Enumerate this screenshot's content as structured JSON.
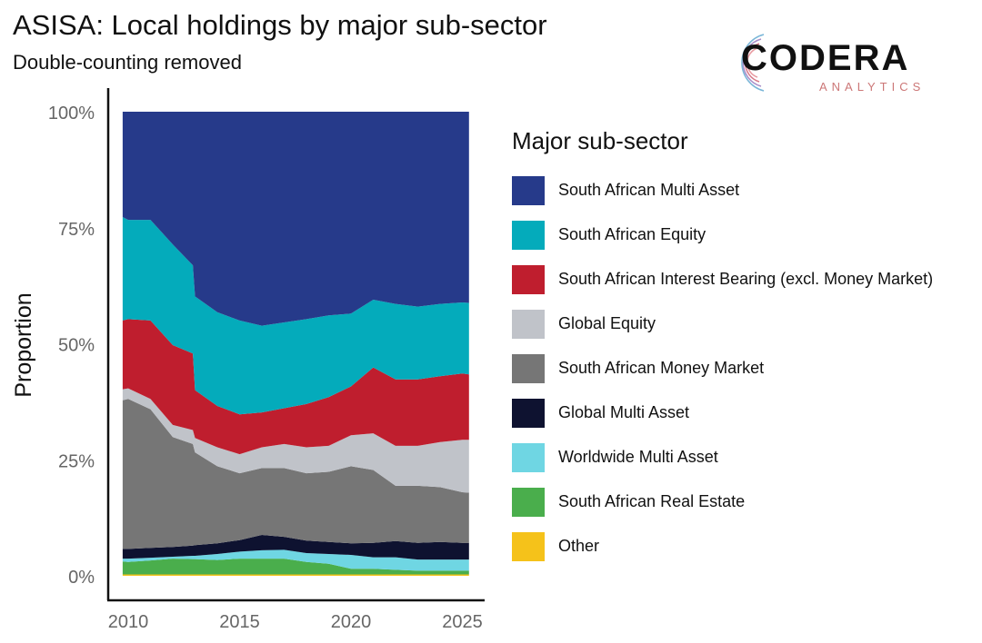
{
  "title": "ASISA: Local holdings by major sub-sector",
  "subtitle": "Double-counting removed",
  "logo": {
    "text": "CODERA",
    "subtext": "ANALYTICS"
  },
  "chart_data": {
    "type": "area",
    "stacked": true,
    "normalized": true,
    "title": "ASISA: Local holdings by major sub-sector",
    "subtitle": "Double-counting removed",
    "xlabel": "",
    "ylabel": "Proportion",
    "xlim": [
      2009.75,
      2025.3
    ],
    "ylim": [
      0,
      100
    ],
    "xticks": [
      2010,
      2015,
      2020,
      2025
    ],
    "xtick_labels": [
      "2010",
      "2015",
      "2020",
      "2025"
    ],
    "yticks": [
      0,
      25,
      50,
      75,
      100
    ],
    "ytick_labels": [
      "0%",
      "25%",
      "50%",
      "75%",
      "100%"
    ],
    "grid": false,
    "legend_title": "Major sub-sector",
    "legend_placement": "right",
    "x": [
      2009.75,
      2010,
      2011,
      2012,
      2012.9,
      2013,
      2014,
      2015,
      2016,
      2017,
      2018,
      2019,
      2020,
      2021,
      2022,
      2023,
      2024,
      2025,
      2025.3
    ],
    "series": [
      {
        "name": "South African Multi Asset",
        "color": "#263a8a",
        "values": [
          22.7,
          23.3,
          23.3,
          28.6,
          33.1,
          39.8,
          43.2,
          45.0,
          46.1,
          45.4,
          44.7,
          43.9,
          43.5,
          40.5,
          41.4,
          42.0,
          41.4,
          41.1,
          41.2
        ]
      },
      {
        "name": "South African Equity",
        "color": "#04abbb",
        "values": [
          22.3,
          21.4,
          21.7,
          21.7,
          19.0,
          20.2,
          20.2,
          20.2,
          18.7,
          18.5,
          18.3,
          17.6,
          15.7,
          14.6,
          16.3,
          15.7,
          15.6,
          15.3,
          15.4
        ]
      },
      {
        "name": "South African Interest Bearing (excl. Money Market)",
        "color": "#bf1e2e",
        "values": [
          14.8,
          14.9,
          16.9,
          17.2,
          16.5,
          10.3,
          8.9,
          8.6,
          7.5,
          7.7,
          9.3,
          10.5,
          10.5,
          14.2,
          14.3,
          14.3,
          14.2,
          14.3,
          14.1
        ]
      },
      {
        "name": "Global Equity",
        "color": "#c0c3c9",
        "values": [
          2.4,
          2.3,
          2.2,
          2.6,
          3.0,
          3.1,
          4.1,
          4.1,
          4.5,
          5.2,
          5.6,
          5.6,
          6.7,
          7.9,
          8.6,
          8.6,
          9.7,
          11.3,
          11.4
        ]
      },
      {
        "name": "South African Money Market",
        "color": "#767676",
        "values": [
          32.0,
          32.3,
          29.9,
          23.7,
          21.9,
          20.0,
          16.6,
          14.4,
          14.4,
          14.8,
          14.5,
          15.1,
          16.6,
          15.7,
          11.9,
          12.3,
          11.8,
          10.9,
          10.8
        ]
      },
      {
        "name": "Global Multi Asset",
        "color": "#0e1230",
        "values": [
          2.1,
          2.1,
          2.1,
          2.1,
          2.2,
          2.3,
          2.3,
          2.5,
          3.3,
          2.8,
          2.7,
          2.6,
          2.5,
          3.1,
          3.5,
          3.6,
          3.8,
          3.6,
          3.6
        ]
      },
      {
        "name": "Worldwide Multi Asset",
        "color": "#6fd6e3",
        "values": [
          0.6,
          0.7,
          0.6,
          0.4,
          0.7,
          0.7,
          1.3,
          1.5,
          1.8,
          1.9,
          1.9,
          2.1,
          3.0,
          2.5,
          2.7,
          2.4,
          2.4,
          2.4,
          2.4
        ]
      },
      {
        "name": "South African Real Estate",
        "color": "#4aae4c",
        "values": [
          2.8,
          2.7,
          3.0,
          3.4,
          3.3,
          3.3,
          3.1,
          3.4,
          3.4,
          3.4,
          2.7,
          2.3,
          1.2,
          1.2,
          1.0,
          0.8,
          0.8,
          0.8,
          0.8
        ]
      },
      {
        "name": "Other",
        "color": "#f5c21a",
        "values": [
          0.3,
          0.3,
          0.3,
          0.3,
          0.3,
          0.3,
          0.3,
          0.3,
          0.3,
          0.3,
          0.3,
          0.3,
          0.3,
          0.3,
          0.3,
          0.3,
          0.3,
          0.3,
          0.3
        ]
      }
    ]
  }
}
